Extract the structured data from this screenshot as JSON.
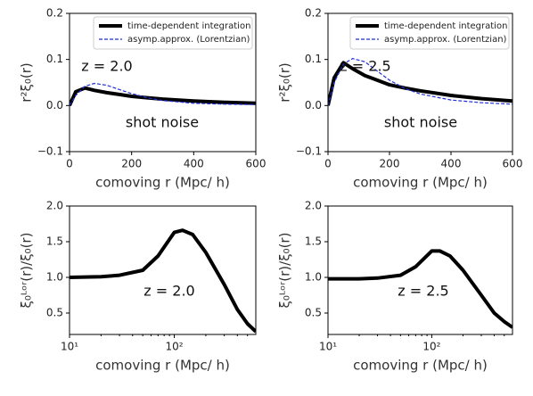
{
  "chart_data": [
    {
      "type": "line",
      "ylabel": "r²ξ₀(r)",
      "xlabel": "comoving r (Mpc/ h)",
      "x": [
        0,
        20,
        50,
        80,
        120,
        160,
        200,
        250,
        300,
        400,
        500,
        600
      ],
      "series": [
        {
          "name": "time-dependent integration",
          "color": "#000000",
          "linestyle": "solid",
          "values": [
            0,
            0.03,
            0.038,
            0.033,
            0.028,
            0.024,
            0.02,
            0.017,
            0.014,
            0.01,
            0.007,
            0.005
          ]
        },
        {
          "name": "asymp.approx. (Lorentzian)",
          "color": "#1f2fd6",
          "linestyle": "dashed",
          "values": [
            0,
            0.022,
            0.042,
            0.048,
            0.044,
            0.035,
            0.026,
            0.017,
            0.011,
            0.005,
            0.003,
            0.002
          ]
        }
      ],
      "xlim": [
        0,
        600
      ],
      "xticks": [
        0,
        200,
        400,
        600
      ],
      "ylim": [
        -0.1,
        0.2
      ],
      "yticks": [
        {
          "value": -0.1,
          "label": "−0.1"
        },
        {
          "value": 0,
          "label": "0.0"
        },
        0.1,
        0.2
      ],
      "legend": "upper right",
      "annotations": [
        "z = 2.0",
        "shot noise"
      ]
    },
    {
      "type": "line",
      "ylabel": "r²ξ₀(r)",
      "xlabel": "comoving r (Mpc/ h)",
      "x": [
        0,
        20,
        50,
        80,
        120,
        160,
        200,
        250,
        300,
        400,
        500,
        600
      ],
      "series": [
        {
          "name": "time-dependent integration",
          "color": "#000000",
          "linestyle": "solid",
          "values": [
            0,
            0.06,
            0.093,
            0.08,
            0.065,
            0.055,
            0.045,
            0.038,
            0.032,
            0.022,
            0.015,
            0.01
          ]
        },
        {
          "name": "asymp.approx. (Lorentzian)",
          "color": "#1f2fd6",
          "linestyle": "dashed",
          "values": [
            0,
            0.05,
            0.09,
            0.102,
            0.095,
            0.075,
            0.055,
            0.037,
            0.025,
            0.012,
            0.006,
            0.003
          ]
        }
      ],
      "xlim": [
        0,
        600
      ],
      "xticks": [
        0,
        200,
        400,
        600
      ],
      "ylim": [
        -0.1,
        0.2
      ],
      "yticks": [
        {
          "value": -0.1,
          "label": "−0.1"
        },
        {
          "value": 0,
          "label": "0.0"
        },
        0.1,
        0.2
      ],
      "legend": "upper right",
      "annotations": [
        "z = 2.5",
        "shot noise"
      ]
    },
    {
      "type": "line",
      "ylabel": "ξ₀ᴸᵒʳ(r)/ξ₀(r)",
      "xlabel": "comoving r (Mpc/ h)",
      "xscale": "log",
      "x": [
        10,
        20,
        30,
        50,
        70,
        100,
        120,
        150,
        200,
        300,
        400,
        500,
        600
      ],
      "series": [
        {
          "color": "#000000",
          "linestyle": "solid",
          "values": [
            1.0,
            1.01,
            1.03,
            1.1,
            1.3,
            1.63,
            1.66,
            1.6,
            1.35,
            0.9,
            0.55,
            0.35,
            0.24
          ]
        }
      ],
      "xlim": [
        10,
        600
      ],
      "xticks": [
        {
          "value": 10,
          "label": "10¹"
        },
        {
          "value": 100,
          "label": "10²"
        }
      ],
      "ylim": [
        0.2,
        2.0
      ],
      "yticks": [
        0.5,
        {
          "value": 1,
          "label": "1.0"
        },
        1.5,
        {
          "value": 2,
          "label": "2.0"
        }
      ],
      "annotations": [
        "z = 2.0"
      ]
    },
    {
      "type": "line",
      "ylabel": "ξ₀ᴸᵒʳ(r)/ξ₀(r)",
      "xlabel": "comoving r (Mpc/ h)",
      "xscale": "log",
      "x": [
        10,
        20,
        30,
        50,
        70,
        100,
        120,
        150,
        200,
        300,
        400,
        500,
        600
      ],
      "series": [
        {
          "color": "#000000",
          "linestyle": "solid",
          "values": [
            0.98,
            0.98,
            0.99,
            1.03,
            1.15,
            1.37,
            1.37,
            1.3,
            1.1,
            0.75,
            0.5,
            0.38,
            0.3
          ]
        }
      ],
      "xlim": [
        10,
        600
      ],
      "xticks": [
        {
          "value": 10,
          "label": "10¹"
        },
        {
          "value": 100,
          "label": "10²"
        }
      ],
      "ylim": [
        0.2,
        2.0
      ],
      "yticks": [
        0.5,
        {
          "value": 1,
          "label": "1.0"
        },
        1.5,
        {
          "value": 2,
          "label": "2.0"
        }
      ],
      "annotations": [
        "z = 2.5"
      ]
    }
  ]
}
